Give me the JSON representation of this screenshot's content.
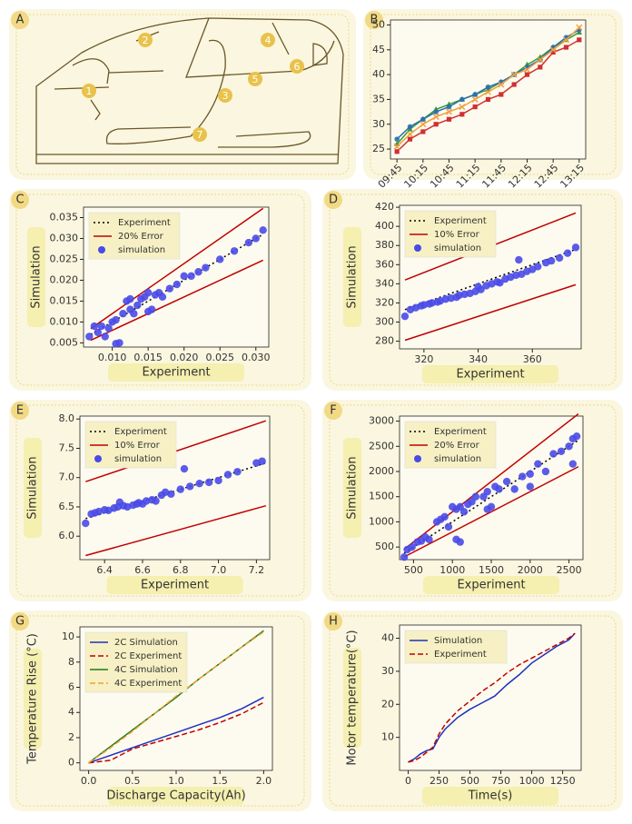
{
  "diagram": {
    "label": "A",
    "markers": [
      "1",
      "2",
      "3",
      "4",
      "5",
      "6",
      "7"
    ]
  },
  "chart_data": [
    {
      "label": "B",
      "type": "line",
      "categories": [
        "09:45",
        null,
        "10:15",
        null,
        "10:45",
        null,
        "11:15",
        null,
        "11:45",
        null,
        "12:15",
        null,
        "12:45",
        null,
        "13:15"
      ],
      "ylim": [
        23,
        51
      ],
      "yticks": [
        25,
        30,
        35,
        40,
        45,
        50
      ],
      "series": [
        {
          "color": "#d03030",
          "marker": "square",
          "values": [
            24.5,
            27,
            28.5,
            30,
            31,
            32,
            33.5,
            35,
            36,
            38,
            40,
            41.5,
            44.5,
            45.5,
            47
          ]
        },
        {
          "color": "#3a9a3a",
          "marker": "triangle",
          "values": [
            26,
            29,
            31,
            33,
            34,
            35,
            36,
            37,
            38.5,
            40,
            42,
            43.5,
            45.5,
            47,
            48.5
          ]
        },
        {
          "color": "#2a6fb0",
          "marker": "circle",
          "values": [
            27,
            29.5,
            31,
            32.5,
            33.5,
            35,
            36,
            37.5,
            38.5,
            40,
            41.5,
            43,
            45.5,
            47.5,
            49
          ]
        },
        {
          "color": "#f0a040",
          "marker": "x",
          "values": [
            25.5,
            28,
            30,
            31.5,
            32.5,
            33.5,
            35,
            36.5,
            38,
            40,
            41,
            43,
            45,
            47,
            49.5
          ]
        }
      ]
    },
    {
      "label": "C",
      "type": "scatter",
      "x_label": "Experiment",
      "y_label": "Simulation",
      "legend": "upper left",
      "xlim": [
        0.006,
        0.0318
      ],
      "xticks": [
        {
          "value": 0.01,
          "label": "0.010"
        },
        0.015,
        {
          "value": 0.02,
          "label": "0.020"
        },
        0.025,
        {
          "value": 0.03,
          "label": "0.030"
        }
      ],
      "ylim": [
        0.004,
        0.0375
      ],
      "yticks": [
        0.005,
        {
          "value": 0.01,
          "label": "0.010"
        },
        0.015,
        {
          "value": 0.02,
          "label": "0.020"
        },
        0.025,
        {
          "value": 0.03,
          "label": "0.030"
        },
        0.035
      ],
      "series": [
        {
          "name": "Experiment",
          "color": "#000000",
          "dash": "dotted",
          "x": [
            0.007,
            0.031
          ],
          "values": [
            0.007,
            0.031
          ]
        },
        {
          "name": "20% Error",
          "color": "#c00000",
          "x": [
            0.007,
            0.031
          ],
          "values": [
            0.0084,
            0.0372
          ]
        },
        {
          "color": "#c00000",
          "x": [
            0.007,
            0.031
          ],
          "values": [
            0.0056,
            0.0248
          ]
        },
        {
          "name": "simulation",
          "color": "#4a4ae8",
          "marker": "circle",
          "x": [
            0.0068,
            0.0075,
            0.008,
            0.0085,
            0.009,
            0.0095,
            0.01,
            0.0105,
            0.011,
            0.0115,
            0.012,
            0.0125,
            0.013,
            0.0135,
            0.014,
            0.0145,
            0.015,
            0.0155,
            0.016,
            0.0165,
            0.017,
            0.018,
            0.019,
            0.02,
            0.021,
            0.022,
            0.023,
            0.025,
            0.027,
            0.029,
            0.03,
            0.031,
            0.0105,
            0.0125,
            0.015
          ],
          "values": [
            0.0065,
            0.009,
            0.0075,
            0.009,
            0.0065,
            0.0085,
            0.01,
            0.0105,
            0.005,
            0.012,
            0.015,
            0.013,
            0.012,
            0.014,
            0.0155,
            0.016,
            0.017,
            0.013,
            0.0165,
            0.017,
            0.016,
            0.018,
            0.019,
            0.021,
            0.021,
            0.022,
            0.023,
            0.025,
            0.027,
            0.029,
            0.03,
            0.032,
            0.0048,
            0.0155,
            0.0125
          ]
        }
      ]
    },
    {
      "label": "D",
      "type": "scatter",
      "x_label": "Experiment",
      "y_label": "Simulation",
      "legend": "upper left",
      "xlim": [
        311,
        378
      ],
      "xticks": [
        320,
        340,
        360
      ],
      "ylim": [
        272,
        422
      ],
      "yticks": [
        280,
        300,
        320,
        340,
        360,
        380,
        400,
        420
      ],
      "series": [
        {
          "name": "Experiment",
          "color": "#000000",
          "dash": "dotted",
          "x": [
            313,
            376
          ],
          "values": [
            313,
            376
          ]
        },
        {
          "name": "10% Error",
          "color": "#c00000",
          "x": [
            313,
            376
          ],
          "values": [
            344,
            414
          ]
        },
        {
          "color": "#c00000",
          "x": [
            313,
            376
          ],
          "values": [
            281,
            339
          ]
        },
        {
          "name": "simulation",
          "color": "#4a4ae8",
          "marker": "circle",
          "x": [
            313,
            315,
            317,
            319,
            320,
            322,
            323,
            325,
            326,
            328,
            330,
            332,
            333,
            335,
            337,
            339,
            341,
            343,
            345,
            347,
            348,
            350,
            352,
            354,
            356,
            358,
            360,
            362,
            365,
            367,
            370,
            373,
            376,
            355,
            340
          ],
          "values": [
            306,
            313,
            315,
            317,
            318,
            319,
            320,
            321,
            322,
            324,
            325,
            326,
            328,
            329,
            330,
            332,
            334,
            338,
            340,
            342,
            341,
            345,
            347,
            349,
            350,
            353,
            355,
            358,
            362,
            364,
            367,
            372,
            378,
            365,
            337
          ]
        }
      ]
    },
    {
      "label": "E",
      "type": "scatter",
      "x_label": "Experiment",
      "y_label": "Simulation",
      "legend": "upper left",
      "xlim": [
        6.27,
        7.27
      ],
      "xticks": [
        6.4,
        6.6,
        6.8,
        {
          "value": 7,
          "label": "7.0"
        },
        7.2
      ],
      "ylim": [
        5.6,
        8.05
      ],
      "yticks": [
        {
          "value": 6,
          "label": "6.0"
        },
        6.5,
        {
          "value": 7,
          "label": "7.0"
        },
        7.5,
        {
          "value": 8,
          "label": "8.0"
        }
      ],
      "series": [
        {
          "name": "Experiment",
          "color": "#000000",
          "dash": "dotted",
          "x": [
            6.3,
            7.25
          ],
          "values": [
            6.3,
            7.25
          ]
        },
        {
          "name": "10% Error",
          "color": "#c00000",
          "x": [
            6.3,
            7.25
          ],
          "values": [
            6.93,
            7.97
          ]
        },
        {
          "color": "#c00000",
          "x": [
            6.3,
            7.25
          ],
          "values": [
            5.67,
            6.52
          ]
        },
        {
          "name": "simulation",
          "color": "#4a4ae8",
          "marker": "circle",
          "x": [
            6.3,
            6.33,
            6.35,
            6.37,
            6.4,
            6.42,
            6.45,
            6.47,
            6.5,
            6.52,
            6.55,
            6.57,
            6.6,
            6.62,
            6.65,
            6.67,
            6.7,
            6.72,
            6.75,
            6.8,
            6.82,
            6.85,
            6.9,
            6.95,
            7,
            7.05,
            7.1,
            7.2,
            7.23,
            6.48,
            6.58
          ],
          "values": [
            6.22,
            6.38,
            6.4,
            6.42,
            6.45,
            6.44,
            6.48,
            6.5,
            6.52,
            6.5,
            6.53,
            6.55,
            6.55,
            6.6,
            6.62,
            6.6,
            6.7,
            6.75,
            6.72,
            6.8,
            7.15,
            6.85,
            6.9,
            6.92,
            6.95,
            7.05,
            7.1,
            7.25,
            7.28,
            6.58,
            6.57
          ]
        }
      ]
    },
    {
      "label": "F",
      "type": "scatter",
      "x_label": "Experiment",
      "y_label": "Simulation",
      "legend": "upper left",
      "xlim": [
        320,
        2680
      ],
      "xticks": [
        500,
        1000,
        1500,
        2000,
        2500
      ],
      "ylim": [
        250,
        3100
      ],
      "yticks": [
        500,
        1000,
        1500,
        2000,
        2500,
        3000
      ],
      "series": [
        {
          "name": "Experiment",
          "color": "#000000",
          "dash": "dotted",
          "x": [
            380,
            2620
          ],
          "values": [
            380,
            2620
          ]
        },
        {
          "name": "20% Error",
          "color": "#c00000",
          "x": [
            380,
            2620
          ],
          "values": [
            456,
            3144
          ]
        },
        {
          "color": "#c00000",
          "x": [
            380,
            2620
          ],
          "values": [
            304,
            2096
          ]
        },
        {
          "name": "simulation",
          "color": "#4a4ae8",
          "marker": "circle",
          "x": [
            380,
            420,
            480,
            550,
            600,
            650,
            700,
            800,
            850,
            900,
            950,
            1000,
            1050,
            1100,
            1150,
            1200,
            1250,
            1300,
            1400,
            1450,
            1500,
            1550,
            1600,
            1700,
            1800,
            1900,
            2000,
            2100,
            2200,
            2300,
            2400,
            2500,
            2550,
            2600,
            1050,
            1100,
            1450,
            2000,
            2550
          ],
          "values": [
            300,
            450,
            500,
            600,
            620,
            700,
            650,
            1000,
            1050,
            1100,
            900,
            1300,
            1250,
            1300,
            1200,
            1350,
            1400,
            1500,
            1500,
            1600,
            1300,
            1700,
            1650,
            1800,
            1650,
            1900,
            1950,
            2150,
            2000,
            2350,
            2400,
            2500,
            2650,
            2700,
            650,
            600,
            1250,
            1700,
            2150
          ]
        }
      ]
    },
    {
      "label": "G",
      "type": "line",
      "x_label": "Discharge Capacity(Ah)",
      "y_label": "Temperature Rise (°C)",
      "legend": "upper left",
      "xlim": [
        -0.1,
        2.1
      ],
      "xticks": [
        {
          "value": 0,
          "label": "0.0"
        },
        0.5,
        {
          "value": 1,
          "label": "1.0"
        },
        1.5,
        {
          "value": 2,
          "label": "2.0"
        }
      ],
      "ylim": [
        -0.6,
        10.8
      ],
      "yticks": [
        0,
        2,
        4,
        6,
        8,
        10
      ],
      "x": [
        0,
        0.25,
        0.5,
        0.75,
        1,
        1.25,
        1.5,
        1.75,
        2
      ],
      "series": [
        {
          "name": "2C Simulation",
          "color": "#1f2fbf",
          "values": [
            0,
            0.6,
            1.2,
            1.8,
            2.4,
            3,
            3.6,
            4.3,
            5.2
          ]
        },
        {
          "name": "2C Experiment",
          "color": "#c00000",
          "dash": "dashed",
          "values": [
            0,
            0.2,
            1.1,
            1.6,
            2.1,
            2.6,
            3.2,
            3.9,
            4.8
          ]
        },
        {
          "name": "4C Simulation",
          "color": "#1a7a1a",
          "values": [
            0,
            1.3,
            2.6,
            3.9,
            5.2,
            6.6,
            7.9,
            9.2,
            10.5
          ]
        },
        {
          "name": "4C Experiment",
          "color": "#f0a030",
          "dash": "dashed",
          "values": [
            0,
            1.2,
            2.5,
            3.9,
            5.3,
            6.6,
            7.9,
            9.2,
            10.4
          ]
        }
      ]
    },
    {
      "label": "H",
      "type": "line",
      "x_label": "Time(s)",
      "y_label": "Motor temperature(°C)",
      "legend": "upper left",
      "xlim": [
        -70,
        1400
      ],
      "xticks": [
        0,
        250,
        500,
        750,
        1000,
        1250
      ],
      "ylim": [
        0,
        44
      ],
      "yticks": [
        10,
        20,
        30,
        40
      ],
      "x": [
        0,
        50,
        100,
        150,
        200,
        250,
        300,
        400,
        500,
        600,
        700,
        800,
        900,
        1000,
        1100,
        1200,
        1300,
        1350
      ],
      "series": [
        {
          "name": "Simulation",
          "color": "#1f2fbf",
          "values": [
            2.5,
            3.5,
            5,
            6,
            6.5,
            10,
            12.5,
            16,
            18.5,
            20.5,
            22.5,
            26,
            29,
            32.5,
            35,
            37.5,
            39.5,
            41.5
          ]
        },
        {
          "name": "Experiment",
          "color": "#c00000",
          "dash": "dashed",
          "values": [
            2.5,
            3,
            4,
            5.5,
            7,
            11,
            14,
            18,
            21,
            24,
            26.5,
            29.5,
            32,
            34,
            36,
            38,
            40,
            41.5
          ]
        }
      ]
    }
  ]
}
